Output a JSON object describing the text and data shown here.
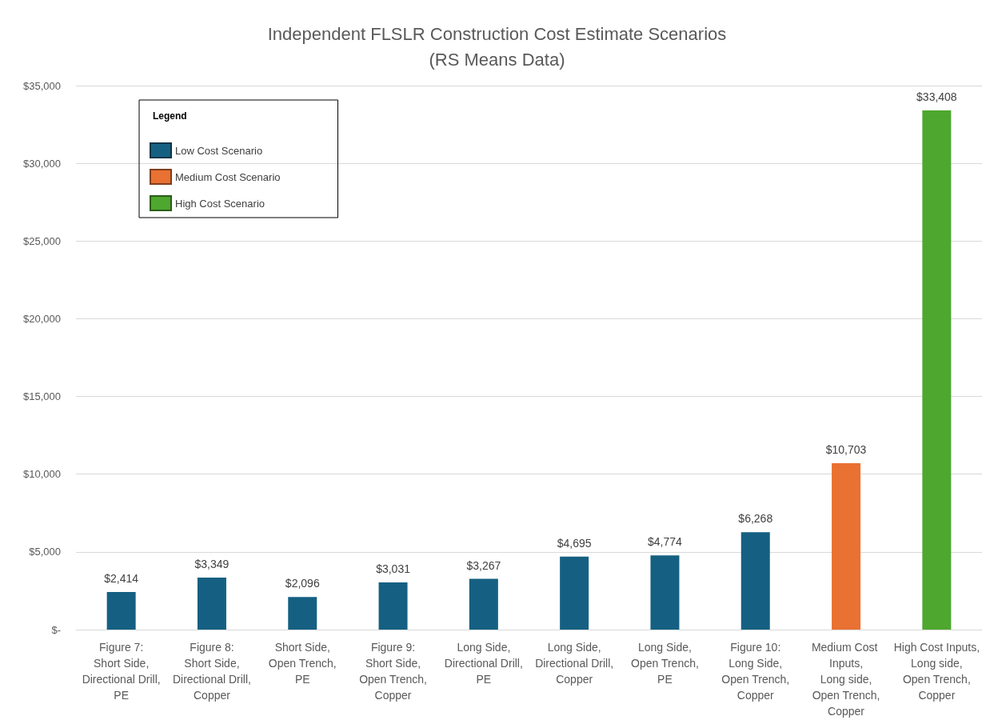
{
  "chart_data": {
    "type": "bar",
    "title": "Independent FLSLR Construction Cost Estimate Scenarios",
    "subtitle": "(RS Means Data)",
    "legend_title": "Legend",
    "categories": [
      "Figure 7:\nShort Side,\nDirectional Drill,\nPE",
      "Figure 8:\nShort Side,\nDirectional Drill,\nCopper",
      "Short Side,\nOpen Trench,\nPE",
      "Figure 9:\nShort Side,\nOpen Trench,\nCopper",
      "Long Side,\nDirectional Drill,\nPE",
      "Long Side,\nDirectional Drill,\nCopper",
      "Long Side,\nOpen Trench,\nPE",
      "Figure 10:\nLong Side,\nOpen Trench,\nCopper",
      "Medium Cost Inputs,\nLong side,\nOpen Trench,\nCopper",
      "High Cost Inputs,\nLong side,\nOpen Trench,\nCopper"
    ],
    "series": [
      {
        "name": "Low Cost Scenario",
        "color": "#156082",
        "values": [
          2414,
          3349,
          2096,
          3031,
          3267,
          4695,
          4774,
          6268,
          null,
          null
        ],
        "value_labels": [
          "$2,414",
          "$3,349",
          "$2,096",
          "$3,031",
          "$3,267",
          "$4,695",
          "$4,774",
          "$6,268",
          null,
          null
        ]
      },
      {
        "name": "Medium Cost Scenario",
        "color": "#e97132",
        "values": [
          null,
          null,
          null,
          null,
          null,
          null,
          null,
          null,
          10703,
          null
        ],
        "value_labels": [
          null,
          null,
          null,
          null,
          null,
          null,
          null,
          null,
          "$10,703",
          null
        ]
      },
      {
        "name": "High Cost Scenario",
        "color": "#4ea72e",
        "values": [
          null,
          null,
          null,
          null,
          null,
          null,
          null,
          null,
          null,
          33408
        ],
        "value_labels": [
          null,
          null,
          null,
          null,
          null,
          null,
          null,
          null,
          null,
          "$33,408"
        ]
      }
    ],
    "ylim": [
      0,
      35000
    ],
    "yticks": [
      {
        "value": 0,
        "label": "$-"
      },
      {
        "value": 5000,
        "label": "$5,000"
      },
      {
        "value": 10000,
        "label": "$10,000"
      },
      {
        "value": 15000,
        "label": "$15,000"
      },
      {
        "value": 20000,
        "label": "$20,000"
      },
      {
        "value": 25000,
        "label": "$25,000"
      },
      {
        "value": 30000,
        "label": "$30,000"
      },
      {
        "value": 35000,
        "label": "$35,000"
      }
    ],
    "grid": "y",
    "legend": "top left"
  }
}
